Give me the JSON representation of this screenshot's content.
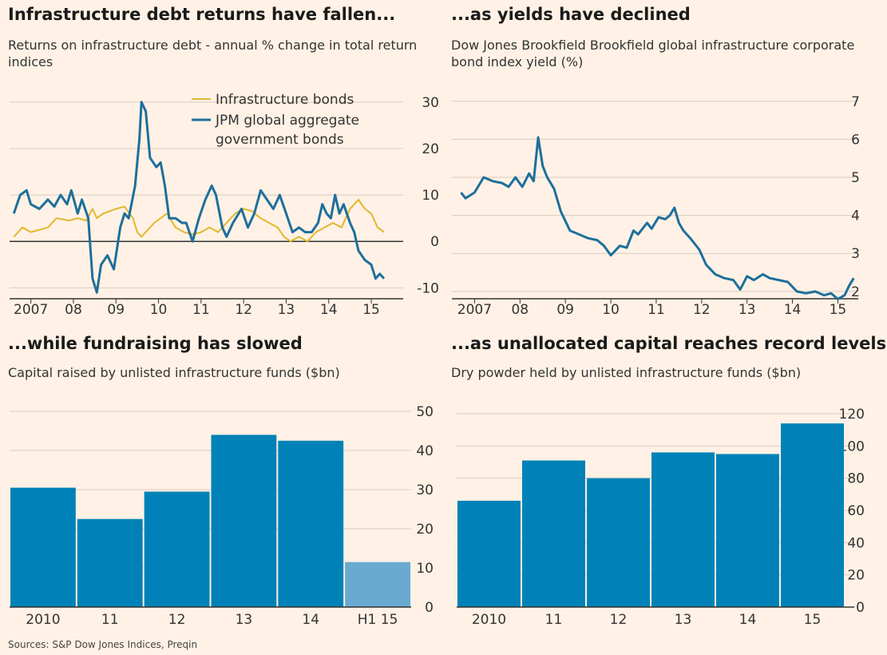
{
  "colors": {
    "background": "#fff1e5",
    "infra": "#e0b82e",
    "jpm": "#1d6f9c",
    "bar": "#0082b8",
    "bar_highlight": "#6aaad0",
    "grid": "#d8ccc0",
    "axis": "#333333"
  },
  "sources": "Sources: S&P Dow Jones Indices, Preqin",
  "panels": [
    {
      "title": "Infrastructure debt returns have fallen...",
      "subtitle": "Returns on infrastructure debt - annual % change in total return indices"
    },
    {
      "title": "...as yields have declined",
      "subtitle": "Dow Jones Brookfield Brookfield global infrastructure corporate bond index yield (%)"
    },
    {
      "title": "...while fundraising has slowed",
      "subtitle": "Capital raised by unlisted infrastructure funds ($bn)"
    },
    {
      "title": "...as unallocated capital reaches record levels",
      "subtitle": "Dry powder held by unlisted infrastructure funds ($bn)"
    }
  ],
  "chart_data": [
    {
      "type": "line",
      "title": "Infrastructure debt returns have fallen...",
      "subtitle": "Returns on infrastructure debt - annual % change in total return indices",
      "xlim": [
        2006.5,
        2015.75
      ],
      "ylim": [
        -12,
        31
      ],
      "yticks": [
        30,
        20,
        10,
        0,
        -10
      ],
      "xticks": [
        {
          "x": 2007,
          "label": "2007"
        },
        {
          "x": 2008,
          "label": "08"
        },
        {
          "x": 2009,
          "label": "09"
        },
        {
          "x": 2010,
          "label": "10"
        },
        {
          "x": 2011,
          "label": "11"
        },
        {
          "x": 2012,
          "label": "12"
        },
        {
          "x": 2013,
          "label": "13"
        },
        {
          "x": 2014,
          "label": "14"
        },
        {
          "x": 2015,
          "label": "15"
        }
      ],
      "grid": true,
      "legend": "top-center",
      "series": [
        {
          "name": "Infrastructure bonds",
          "color": "#e0b82e",
          "points": [
            [
              2006.6,
              1
            ],
            [
              2006.8,
              3
            ],
            [
              2007.0,
              2
            ],
            [
              2007.2,
              2.5
            ],
            [
              2007.4,
              3
            ],
            [
              2007.6,
              5
            ],
            [
              2007.9,
              4.5
            ],
            [
              2008.1,
              5
            ],
            [
              2008.3,
              4.5
            ],
            [
              2008.45,
              7
            ],
            [
              2008.55,
              5
            ],
            [
              2008.7,
              6
            ],
            [
              2009.0,
              7
            ],
            [
              2009.2,
              7.5
            ],
            [
              2009.4,
              5
            ],
            [
              2009.5,
              2
            ],
            [
              2009.6,
              1
            ],
            [
              2009.75,
              2.5
            ],
            [
              2009.9,
              4
            ],
            [
              2010.2,
              6
            ],
            [
              2010.4,
              3
            ],
            [
              2010.6,
              2
            ],
            [
              2010.8,
              1.5
            ],
            [
              2011.0,
              2
            ],
            [
              2011.2,
              3
            ],
            [
              2011.4,
              2
            ],
            [
              2011.6,
              4
            ],
            [
              2011.8,
              6
            ],
            [
              2012.0,
              7
            ],
            [
              2012.2,
              6.5
            ],
            [
              2012.4,
              5
            ],
            [
              2012.6,
              4
            ],
            [
              2012.8,
              3
            ],
            [
              2012.95,
              1
            ],
            [
              2013.1,
              0
            ],
            [
              2013.3,
              1
            ],
            [
              2013.5,
              0
            ],
            [
              2013.7,
              2
            ],
            [
              2013.9,
              3
            ],
            [
              2014.1,
              4
            ],
            [
              2014.3,
              3
            ],
            [
              2014.5,
              7
            ],
            [
              2014.7,
              9
            ],
            [
              2014.85,
              7
            ],
            [
              2015.0,
              6
            ],
            [
              2015.15,
              3
            ],
            [
              2015.3,
              2
            ]
          ]
        },
        {
          "name": "JPM global aggregate government bonds",
          "color": "#1d6f9c",
          "points": [
            [
              2006.6,
              6
            ],
            [
              2006.75,
              10
            ],
            [
              2006.9,
              11
            ],
            [
              2007.0,
              8
            ],
            [
              2007.2,
              7
            ],
            [
              2007.4,
              9
            ],
            [
              2007.55,
              7.5
            ],
            [
              2007.7,
              10
            ],
            [
              2007.85,
              8
            ],
            [
              2007.95,
              11
            ],
            [
              2008.1,
              6
            ],
            [
              2008.2,
              9
            ],
            [
              2008.35,
              5
            ],
            [
              2008.45,
              -8
            ],
            [
              2008.55,
              -11
            ],
            [
              2008.65,
              -5
            ],
            [
              2008.8,
              -3
            ],
            [
              2008.95,
              -6
            ],
            [
              2009.1,
              3
            ],
            [
              2009.2,
              6
            ],
            [
              2009.3,
              5
            ],
            [
              2009.45,
              12
            ],
            [
              2009.55,
              22
            ],
            [
              2009.6,
              30
            ],
            [
              2009.7,
              28
            ],
            [
              2009.8,
              18
            ],
            [
              2009.95,
              16
            ],
            [
              2010.05,
              17
            ],
            [
              2010.15,
              12
            ],
            [
              2010.25,
              5
            ],
            [
              2010.4,
              5
            ],
            [
              2010.55,
              4
            ],
            [
              2010.65,
              4
            ],
            [
              2010.8,
              0
            ],
            [
              2010.95,
              5
            ],
            [
              2011.1,
              9
            ],
            [
              2011.25,
              12
            ],
            [
              2011.35,
              10
            ],
            [
              2011.5,
              3
            ],
            [
              2011.6,
              1
            ],
            [
              2011.75,
              4
            ],
            [
              2011.95,
              7
            ],
            [
              2012.1,
              3
            ],
            [
              2012.25,
              6
            ],
            [
              2012.4,
              11
            ],
            [
              2012.55,
              9
            ],
            [
              2012.7,
              7
            ],
            [
              2012.85,
              10
            ],
            [
              2013.0,
              6
            ],
            [
              2013.15,
              2
            ],
            [
              2013.3,
              3
            ],
            [
              2013.45,
              2
            ],
            [
              2013.6,
              2
            ],
            [
              2013.75,
              4
            ],
            [
              2013.85,
              8
            ],
            [
              2013.95,
              6
            ],
            [
              2014.05,
              5
            ],
            [
              2014.15,
              10
            ],
            [
              2014.25,
              6
            ],
            [
              2014.35,
              8
            ],
            [
              2014.5,
              4
            ],
            [
              2014.6,
              2
            ],
            [
              2014.7,
              -2
            ],
            [
              2014.85,
              -4
            ],
            [
              2015.0,
              -5
            ],
            [
              2015.1,
              -8
            ],
            [
              2015.2,
              -7
            ],
            [
              2015.3,
              -8
            ]
          ]
        }
      ]
    },
    {
      "type": "line",
      "title": "...as yields have declined",
      "subtitle": "Dow Jones Brookfield Brookfield global infrastructure corporate bond index yield (%)",
      "xlim": [
        2006.5,
        2015.45
      ],
      "ylim": [
        1.85,
        7.1
      ],
      "yticks": [
        7,
        6,
        5,
        4,
        3,
        2
      ],
      "xticks": [
        {
          "x": 2007,
          "label": "2007"
        },
        {
          "x": 2008,
          "label": "08"
        },
        {
          "x": 2009,
          "label": "09"
        },
        {
          "x": 2010,
          "label": "10"
        },
        {
          "x": 2011,
          "label": "11"
        },
        {
          "x": 2012,
          "label": "12"
        },
        {
          "x": 2013,
          "label": "13"
        },
        {
          "x": 2014,
          "label": "14"
        },
        {
          "x": 2015,
          "label": "15"
        }
      ],
      "grid": true,
      "series": [
        {
          "name": "",
          "color": "#1d6f9c",
          "points": [
            [
              2006.7,
              4.6
            ],
            [
              2006.8,
              4.45
            ],
            [
              2007.0,
              4.6
            ],
            [
              2007.2,
              5.0
            ],
            [
              2007.4,
              4.9
            ],
            [
              2007.6,
              4.85
            ],
            [
              2007.75,
              4.75
            ],
            [
              2007.9,
              5.0
            ],
            [
              2008.05,
              4.75
            ],
            [
              2008.2,
              5.1
            ],
            [
              2008.3,
              4.9
            ],
            [
              2008.4,
              6.05
            ],
            [
              2008.5,
              5.3
            ],
            [
              2008.6,
              5.0
            ],
            [
              2008.75,
              4.7
            ],
            [
              2008.9,
              4.1
            ],
            [
              2009.1,
              3.6
            ],
            [
              2009.3,
              3.5
            ],
            [
              2009.5,
              3.4
            ],
            [
              2009.7,
              3.35
            ],
            [
              2009.85,
              3.2
            ],
            [
              2010.0,
              2.95
            ],
            [
              2010.2,
              3.2
            ],
            [
              2010.35,
              3.15
            ],
            [
              2010.5,
              3.6
            ],
            [
              2010.6,
              3.5
            ],
            [
              2010.8,
              3.8
            ],
            [
              2010.9,
              3.65
            ],
            [
              2011.05,
              3.95
            ],
            [
              2011.2,
              3.9
            ],
            [
              2011.3,
              4.0
            ],
            [
              2011.4,
              4.2
            ],
            [
              2011.5,
              3.8
            ],
            [
              2011.6,
              3.6
            ],
            [
              2011.75,
              3.4
            ],
            [
              2011.95,
              3.1
            ],
            [
              2012.1,
              2.7
            ],
            [
              2012.3,
              2.45
            ],
            [
              2012.5,
              2.35
            ],
            [
              2012.7,
              2.3
            ],
            [
              2012.85,
              2.05
            ],
            [
              2013.0,
              2.4
            ],
            [
              2013.15,
              2.3
            ],
            [
              2013.35,
              2.45
            ],
            [
              2013.5,
              2.35
            ],
            [
              2013.7,
              2.3
            ],
            [
              2013.9,
              2.25
            ],
            [
              2014.1,
              2.0
            ],
            [
              2014.3,
              1.95
            ],
            [
              2014.5,
              2.0
            ],
            [
              2014.7,
              1.9
            ],
            [
              2014.85,
              1.95
            ],
            [
              2015.0,
              1.8
            ],
            [
              2015.15,
              1.9
            ],
            [
              2015.25,
              2.15
            ],
            [
              2015.35,
              2.35
            ]
          ]
        }
      ]
    },
    {
      "type": "bar",
      "title": "...while fundraising has slowed",
      "subtitle": "Capital raised by unlisted infrastructure funds ($bn)",
      "categories": [
        "2010",
        "11",
        "12",
        "13",
        "14",
        "H1 15"
      ],
      "values": [
        30.5,
        22.5,
        29.5,
        44,
        42.5,
        11.5
      ],
      "highlight_index": 5,
      "ylim": [
        0,
        50
      ],
      "yticks": [
        50,
        40,
        30,
        20,
        10,
        0
      ],
      "grid": true
    },
    {
      "type": "bar",
      "title": "...as unallocated capital reaches record levels",
      "subtitle": "Dry powder held by unlisted infrastructure funds ($bn)",
      "categories": [
        "2010",
        "11",
        "12",
        "13",
        "14",
        "15"
      ],
      "values": [
        66,
        91,
        80,
        96,
        95,
        114
      ],
      "ylim": [
        0,
        120
      ],
      "yticks": [
        120,
        100,
        80,
        60,
        40,
        20,
        0
      ],
      "grid": true
    }
  ]
}
